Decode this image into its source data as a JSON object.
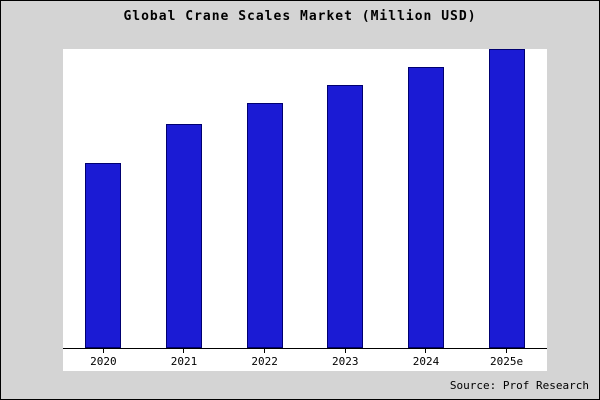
{
  "title": "Global Crane Scales Market (Million USD)",
  "source": "Source: Prof Research",
  "colors": {
    "bar": "#1b1bd4",
    "bar_border": "#000070",
    "page_background": "#d4d4d4",
    "plot_background": "#ffffff",
    "axis": "#000000"
  },
  "chart_data": {
    "type": "bar",
    "title": "Global Crane Scales Market (Million USD)",
    "categories": [
      "2020",
      "2021",
      "2022",
      "2023",
      "2024",
      "2025e"
    ],
    "values": [
      62,
      75,
      82,
      88,
      94,
      100
    ],
    "xlabel": "",
    "ylabel": "",
    "ylim": [
      0,
      100
    ],
    "grid": false,
    "legend": false,
    "annotations": [
      "Source: Prof Research"
    ]
  }
}
